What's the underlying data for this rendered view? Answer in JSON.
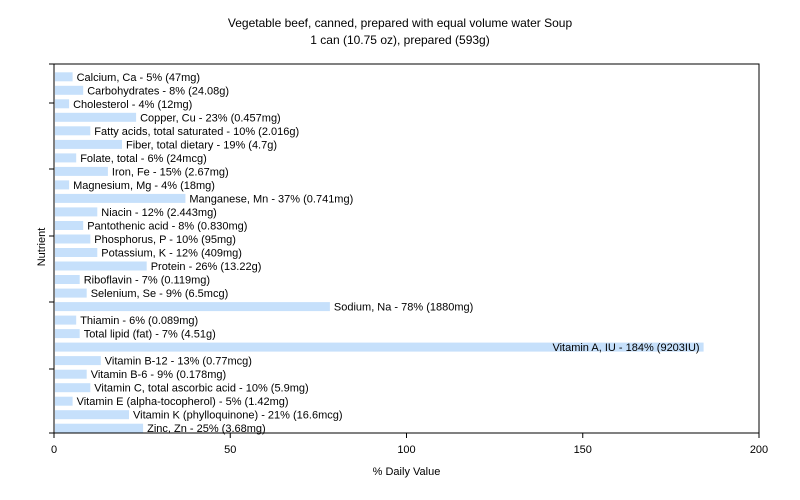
{
  "chart_data": {
    "type": "bar",
    "orientation": "horizontal",
    "title": "Vegetable beef, canned, prepared with equal volume water Soup",
    "subtitle": "1 can (10.75 oz), prepared (593g)",
    "xlabel": "% Daily Value",
    "ylabel": "Nutrient",
    "xlim": [
      0,
      200
    ],
    "xticks": [
      0,
      50,
      100,
      150,
      200
    ],
    "bar_color": "#c6e0fb",
    "grid": false,
    "categories": [
      "Calcium, Ca",
      "Carbohydrates",
      "Cholesterol",
      "Copper, Cu",
      "Fatty acids, total saturated",
      "Fiber, total dietary",
      "Folate, total",
      "Iron, Fe",
      "Magnesium, Mg",
      "Manganese, Mn",
      "Niacin",
      "Pantothenic acid",
      "Phosphorus, P",
      "Potassium, K",
      "Protein",
      "Riboflavin",
      "Selenium, Se",
      "Sodium, Na",
      "Thiamin",
      "Total lipid (fat)",
      "Vitamin A, IU",
      "Vitamin B-12",
      "Vitamin B-6",
      "Vitamin C, total ascorbic acid",
      "Vitamin E (alpha-tocopherol)",
      "Vitamin K (phylloquinone)",
      "Zinc, Zn"
    ],
    "values": [
      5,
      8,
      4,
      23,
      10,
      19,
      6,
      15,
      4,
      37,
      12,
      8,
      10,
      12,
      26,
      7,
      9,
      78,
      6,
      7,
      184,
      13,
      9,
      10,
      5,
      21,
      25
    ],
    "labels": [
      "Calcium, Ca - 5% (47mg)",
      "Carbohydrates - 8% (24.08g)",
      "Cholesterol - 4% (12mg)",
      "Copper, Cu - 23% (0.457mg)",
      "Fatty acids, total saturated - 10% (2.016g)",
      "Fiber, total dietary - 19% (4.7g)",
      "Folate, total - 6% (24mcg)",
      "Iron, Fe - 15% (2.67mg)",
      "Magnesium, Mg - 4% (18mg)",
      "Manganese, Mn - 37% (0.741mg)",
      "Niacin - 12% (2.443mg)",
      "Pantothenic acid - 8% (0.830mg)",
      "Phosphorus, P - 10% (95mg)",
      "Potassium, K - 12% (409mg)",
      "Protein - 26% (13.22g)",
      "Riboflavin - 7% (0.119mg)",
      "Selenium, Se - 9% (6.5mcg)",
      "Sodium, Na - 78% (1880mg)",
      "Thiamin - 6% (0.089mg)",
      "Total lipid (fat) - 7% (4.51g)",
      "Vitamin A, IU - 184% (9203IU)",
      "Vitamin B-12 - 13% (0.77mcg)",
      "Vitamin B-6 - 9% (0.178mg)",
      "Vitamin C, total ascorbic acid - 10% (5.9mg)",
      "Vitamin E (alpha-tocopherol) - 5% (1.42mg)",
      "Vitamin K (phylloquinone) - 21% (16.6mcg)",
      "Zinc, Zn - 25% (3.68mg)"
    ]
  }
}
